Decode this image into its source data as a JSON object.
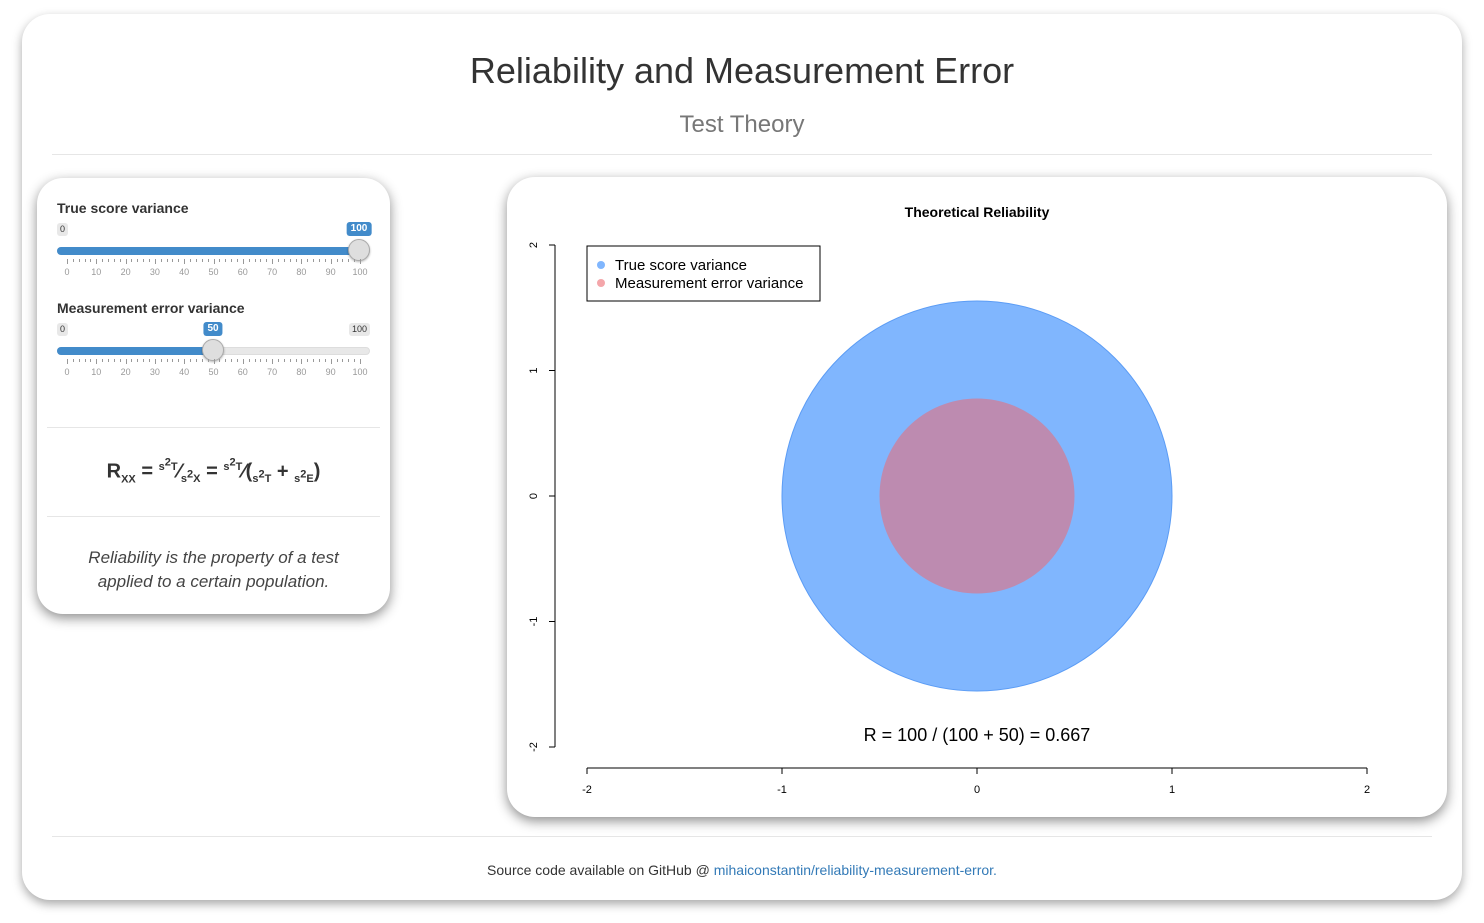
{
  "header": {
    "title": "Reliability and Measurement Error",
    "subtitle": "Test Theory"
  },
  "sidebar": {
    "sliders": [
      {
        "label": "True score variance",
        "min": 0,
        "max": 100,
        "value": 100,
        "min_label": "0",
        "max_label": "100",
        "value_label": "100"
      },
      {
        "label": "Measurement error variance",
        "min": 0,
        "max": 100,
        "value": 50,
        "min_label": "0",
        "max_label": "100",
        "value_label": "50"
      }
    ],
    "tick_labels": [
      "0",
      "10",
      "20",
      "30",
      "40",
      "50",
      "60",
      "70",
      "80",
      "90",
      "100"
    ],
    "formula": {
      "r": "R",
      "r_sub": "XX",
      "s": "s",
      "sq": "2",
      "t": "T",
      "x": "X",
      "e": "E",
      "eq": "=",
      "plus": "+",
      "slash": "⁄",
      "lp": "(",
      "rp": ")"
    },
    "note": "Reliability is the property of a test applied to a certain population."
  },
  "chart_data": {
    "type": "scatter",
    "title": "Theoretical Reliability",
    "xlabel": "",
    "ylabel": "",
    "xlim": [
      -2,
      2
    ],
    "ylim": [
      -2,
      2
    ],
    "x_ticks": [
      "-2",
      "-1",
      "0",
      "1",
      "2"
    ],
    "y_ticks": [
      "-2",
      "-1",
      "0",
      "1",
      "2"
    ],
    "series": [
      {
        "name": "True score variance",
        "color": "#80b6fe",
        "edge": "#5b9cf5",
        "center": [
          0,
          0
        ],
        "radius": 1.0
      },
      {
        "name": "Measurement error variance",
        "color": "#bd8bb0",
        "legend_color": "#f4a6aa",
        "center": [
          0,
          0
        ],
        "radius": 0.5
      }
    ],
    "legend": "top-left",
    "annotation": "R = 100 / (100 + 50) = 0.667"
  },
  "footer": {
    "text": "Source code available on GitHub @ ",
    "link": "mihaiconstantin/reliability-measurement-error."
  }
}
